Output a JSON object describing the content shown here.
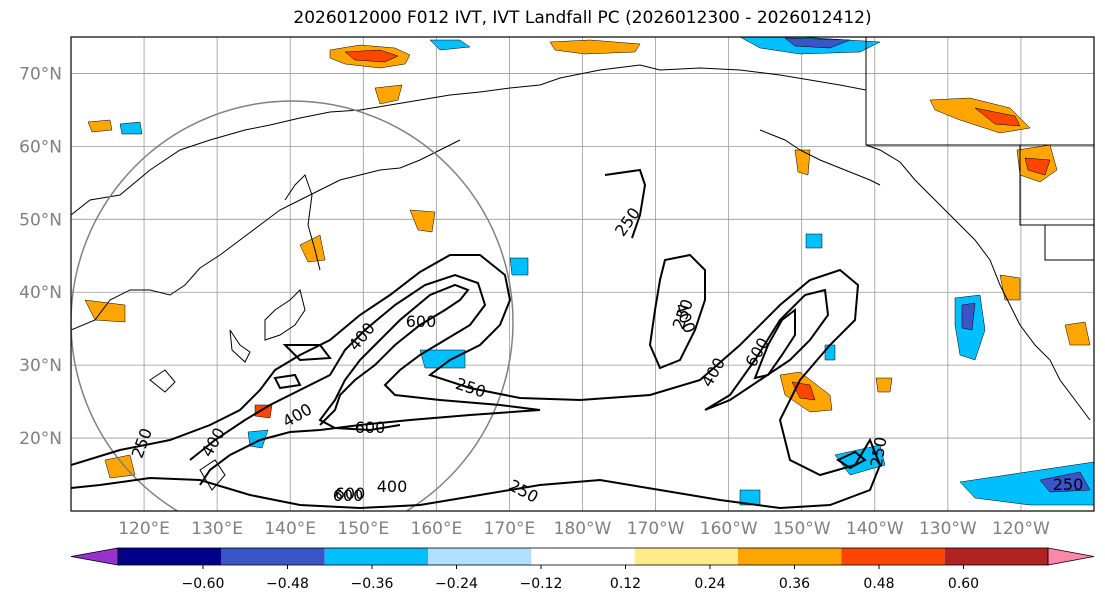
{
  "title": "2026012000 F012 IVT, IVT Landfall PC (2026012300 - 2026012412)",
  "map": {
    "projection": "PlateCarree",
    "lon_range_east": [
      110,
      250
    ],
    "lat_range": [
      10,
      75
    ],
    "lat_ticks": [
      "20°N",
      "30°N",
      "40°N",
      "50°N",
      "60°N",
      "70°N"
    ],
    "lon_ticks": [
      "120°E",
      "130°E",
      "140°E",
      "150°E",
      "160°E",
      "170°E",
      "180°W",
      "170°W",
      "160°W",
      "150°W",
      "140°W",
      "130°W",
      "120°W"
    ],
    "gridlines": true
  },
  "colorbar": {
    "levels": [
      "−0.60",
      "−0.48",
      "−0.36",
      "−0.24",
      "−0.12",
      "0.12",
      "0.24",
      "0.36",
      "0.48",
      "0.60"
    ],
    "colors": [
      "#9932cc",
      "#00008b",
      "#3a55c8",
      "#00bfff",
      "#b0e0ff",
      "#ffffff",
      "#ffeb8a",
      "#ffa500",
      "#ff4500",
      "#b22222",
      "#ff88aa"
    ],
    "extend": "both"
  },
  "contours": {
    "levels": [
      250,
      400,
      600
    ],
    "labels": [
      "250",
      "400",
      "600",
      "250",
      "400",
      "600",
      "250",
      "400",
      "600",
      "250",
      "400",
      "600",
      "250",
      "250",
      "250"
    ]
  },
  "colors": {
    "grid": "#808080",
    "coast": "#000000",
    "circle": "#808080"
  }
}
